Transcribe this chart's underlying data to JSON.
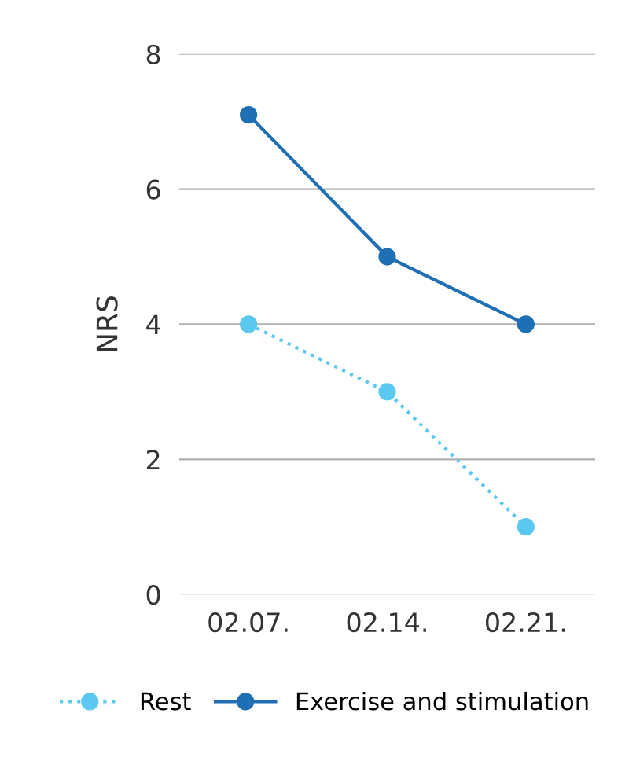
{
  "chart_data": {
    "type": "line",
    "ylabel": "NRS",
    "categories": [
      "02.07.",
      "02.14.",
      "02.21."
    ],
    "series": [
      {
        "name": "Rest",
        "color": "#5bc8f0",
        "values": [
          4,
          3,
          1
        ],
        "line_style": "dotted"
      },
      {
        "name": "Exercise and stimulation",
        "color": "#1f6fb5",
        "values": [
          7.1,
          5.0,
          4
        ],
        "line_style": "solid"
      }
    ],
    "ylim": [
      0,
      8
    ],
    "yticks": [
      0,
      2,
      4,
      6,
      8
    ],
    "grid": "y",
    "legend": "bottom",
    "marker": "circle"
  }
}
